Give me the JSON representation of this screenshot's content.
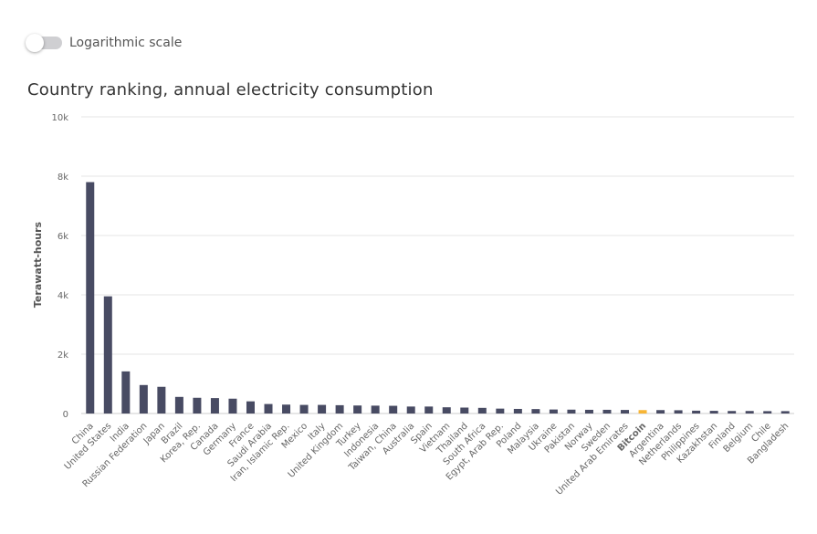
{
  "toggle": {
    "label": "Logarithmic scale",
    "checked": false
  },
  "colors": {
    "bar": "#484b63",
    "highlight": "#f7b535",
    "grid": "#e6e6e6",
    "baseline": "#cccccc"
  },
  "chart_data": {
    "type": "bar",
    "title": "Country ranking, annual electricity consumption",
    "ylabel": "Terawatt-hours",
    "xlabel": "",
    "ylim": [
      0,
      10000
    ],
    "yticks": [
      {
        "value": 0,
        "label": "0"
      },
      {
        "value": 2000,
        "label": "2k"
      },
      {
        "value": 4000,
        "label": "4k"
      },
      {
        "value": 6000,
        "label": "6k"
      },
      {
        "value": 8000,
        "label": "8k"
      },
      {
        "value": 10000,
        "label": "10k"
      }
    ],
    "grid": true,
    "legend": "none",
    "highlight_category": "Bitcoin",
    "categories": [
      "China",
      "United States",
      "India",
      "Russian Federation",
      "Japan",
      "Brazil",
      "Korea, Rep.",
      "Canada",
      "Germany",
      "France",
      "Saudi Arabia",
      "Iran, Islamic Rep.",
      "Mexico",
      "Italy",
      "United Kingdom",
      "Turkey",
      "Indonesia",
      "Taiwan, China",
      "Australia",
      "Spain",
      "Vietnam",
      "Thailand",
      "South Africa",
      "Egypt, Arab Rep.",
      "Poland",
      "Malaysia",
      "Ukraine",
      "Pakistan",
      "Norway",
      "Sweden",
      "United Arab Emirates",
      "Bitcoin",
      "Argentina",
      "Netherlands",
      "Philippines",
      "Kazakhstan",
      "Finland",
      "Belgium",
      "Chile",
      "Bangladesh"
    ],
    "values": [
      7800,
      3950,
      1420,
      960,
      900,
      560,
      530,
      520,
      500,
      410,
      320,
      300,
      290,
      290,
      280,
      270,
      265,
      260,
      235,
      235,
      210,
      200,
      190,
      165,
      155,
      150,
      135,
      130,
      125,
      125,
      120,
      115,
      115,
      110,
      95,
      90,
      85,
      85,
      80,
      80
    ]
  }
}
